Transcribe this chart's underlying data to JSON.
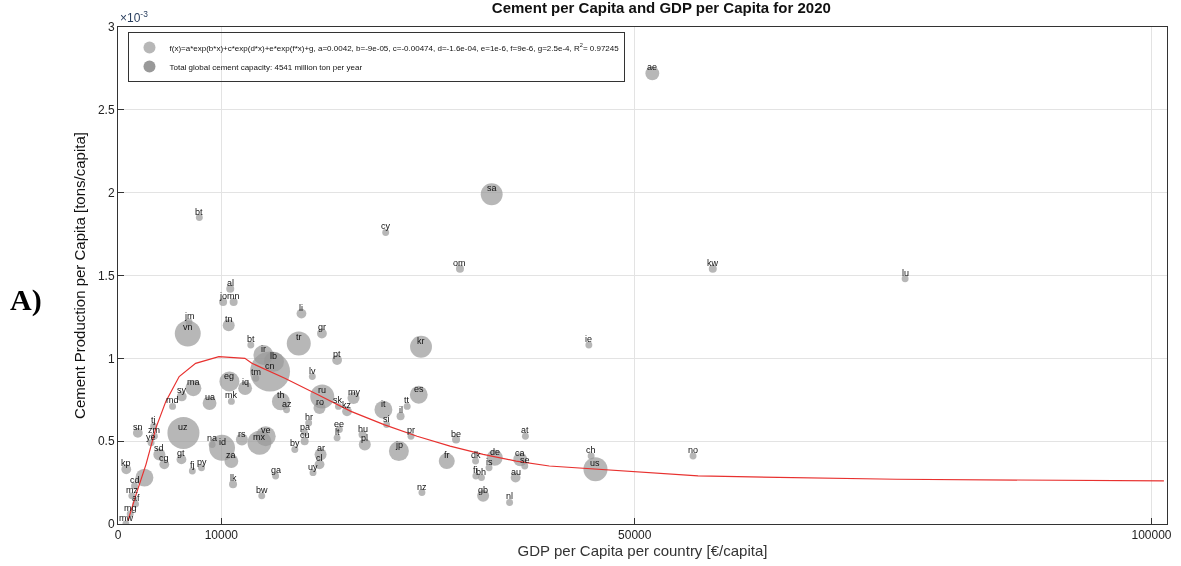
{
  "chart_data": {
    "type": "bubble",
    "title": "Cement per Capita and GDP per Capita for 2020",
    "xlabel": "GDP per Capita per country [€/capita]",
    "ylabel": "Cement Production per Capita [tons/capita]",
    "xlim": [
      0,
      101500
    ],
    "xticks": [
      0,
      10000,
      50000,
      100000
    ],
    "ylim": [
      0,
      3
    ],
    "yticks": [
      0,
      0.5,
      1,
      1.5,
      2,
      2.5,
      3
    ],
    "grid": true,
    "legend": "top left",
    "marker": "circle",
    "series": [
      {
        "name": "f(x)=a*exp(b*x)+c*exp(d*x)+e*exp(f*x)+g, a=0.0042, b=-9e-05, c=-0.00474, d=-1.6e-04, e=1e-6, f=9e-6, g=2.5e-4, R$^{2}$= 0.97245",
        "color": "#999999",
        "x": [
          51700,
          36160,
          25900,
          7870,
          33090,
          57550,
          76160,
          10860,
          10170,
          11190,
          17750,
          19730,
          10710,
          6870,
          6750,
          17490,
          12850,
          14070,
          21200,
          15090,
          29320,
          45560,
          14710,
          13330,
          18800,
          10780,
          12300,
          7290,
          6170,
          5280,
          8860,
          10970,
          22790,
          19760,
          15760,
          16310,
          19500,
          21330,
          22160,
          25680,
          29100,
          27980,
          27340,
          25990,
          18450,
          21420,
          21200,
          18060,
          18060,
          17110,
          23660,
          23880,
          27180,
          28350,
          32710,
          39420,
          31810,
          34600,
          35900,
          34630,
          35170,
          36450,
          38920,
          39360,
          38470,
          35330,
          29410,
          37890,
          45780,
          46200,
          55640,
          19600,
          19500,
          18870,
          15250,
          13910,
          11130,
          14290,
          13690,
          11990,
          9110,
          10070,
          10970,
          6330,
          3520,
          1920,
          3450,
          3200,
          4000,
          6140,
          4480,
          7190,
          8080,
          800,
          2560,
          1600,
          1340,
          1700,
          1180,
          770
        ],
        "values": [
          2.72,
          1.99,
          1.76,
          1.85,
          1.54,
          1.54,
          1.48,
          1.42,
          1.34,
          1.34,
          1.27,
          1.15,
          1.2,
          1.22,
          1.15,
          1.09,
          1.08,
          1.02,
          0.99,
          0.98,
          1.07,
          1.08,
          0.92,
          0.88,
          0.89,
          0.86,
          0.82,
          0.82,
          0.77,
          0.71,
          0.73,
          0.74,
          0.76,
          0.77,
          0.74,
          0.69,
          0.7,
          0.71,
          0.68,
          0.69,
          0.78,
          0.71,
          0.65,
          0.6,
          0.61,
          0.57,
          0.52,
          0.55,
          0.5,
          0.45,
          0.54,
          0.48,
          0.44,
          0.53,
          0.51,
          0.53,
          0.38,
          0.38,
          0.34,
          0.29,
          0.28,
          0.4,
          0.39,
          0.35,
          0.28,
          0.17,
          0.19,
          0.13,
          0.41,
          0.33,
          0.41,
          0.42,
          0.36,
          0.31,
          0.29,
          0.17,
          0.24,
          0.53,
          0.49,
          0.51,
          0.48,
          0.46,
          0.38,
          0.55,
          0.53,
          0.55,
          0.59,
          0.49,
          0.42,
          0.39,
          0.36,
          0.32,
          0.34,
          0.33,
          0.28,
          0.23,
          0.17,
          0.12,
          0.06,
          0.0
        ],
        "sizes": [
          0.12,
          0.3,
          0.03,
          0.03,
          0.04,
          0.04,
          0.03,
          0.04,
          0.04,
          0.04,
          0.06,
          0.06,
          0.09,
          0.03,
          0.42,
          0.36,
          0.03,
          0.25,
          0.06,
          0.25,
          0.3,
          0.03,
          1,
          0.03,
          0.03,
          0.25,
          0.12,
          0.16,
          0.06,
          0.03,
          0.12,
          0.03,
          0.09,
          0.36,
          0.2,
          0.03,
          0.09,
          0.03,
          0.06,
          0.2,
          0.2,
          0.03,
          0.04,
          0.03,
          0.03,
          0.03,
          0.03,
          0.03,
          0.04,
          0.03,
          0.04,
          0.09,
          0.25,
          0.03,
          0.04,
          0.03,
          0.16,
          0.03,
          0.03,
          0.03,
          0.03,
          0.16,
          0.12,
          0.03,
          0.06,
          0.09,
          0.03,
          0.03,
          0.03,
          0.36,
          0.03,
          0.09,
          0.06,
          0.03,
          0.03,
          0.03,
          0.04,
          0.25,
          0.36,
          0.09,
          0.03,
          0.42,
          0.12,
          0.64,
          0.03,
          0.06,
          0.03,
          0.03,
          0.09,
          0.06,
          0.06,
          0.03,
          0.03,
          0.06,
          0.2,
          0.03,
          0.03,
          0.03,
          0.03,
          0.03
        ]
      },
      {
        "name": "Total global cement capacity: 4541 million ton per year",
        "color": "#999999",
        "type": "scatter"
      },
      {
        "type": "line",
        "color": "#e8312f",
        "line_style": "solid",
        "marker": "none",
        "x": [
          960,
          1760,
          2710,
          3670,
          4630,
          5920,
          7510,
          9760,
          12280,
          12950,
          16140,
          19350,
          22540,
          25740,
          28940,
          32130,
          35330,
          38530,
          41730,
          56120,
          75300,
          101200
        ],
        "values": [
          0.02,
          0.18,
          0.36,
          0.58,
          0.74,
          0.89,
          0.97,
          1.01,
          1.0,
          0.97,
          0.88,
          0.78,
          0.68,
          0.6,
          0.53,
          0.47,
          0.42,
          0.38,
          0.35,
          0.29,
          0.27,
          0.26
        ]
      }
    ],
    "annotations": [
      "×10$^{-3}$",
      "A)",
      {
        "text": "ae",
        "x": 51700,
        "y": 2.72
      },
      {
        "text": "sa",
        "x": 36160,
        "y": 1.99
      },
      {
        "text": "cy",
        "x": 25900,
        "y": 1.76
      },
      {
        "text": "bt",
        "x": 7870,
        "y": 1.85
      },
      {
        "text": "om",
        "x": 33090,
        "y": 1.54
      },
      {
        "text": "kw",
        "x": 57550,
        "y": 1.54
      },
      {
        "text": "lu",
        "x": 76160,
        "y": 1.48
      },
      {
        "text": "al",
        "x": 10860,
        "y": 1.42
      },
      {
        "text": "jo",
        "x": 10170,
        "y": 1.34
      },
      {
        "text": "mn",
        "x": 11190,
        "y": 1.34
      },
      {
        "text": "li",
        "x": 17750,
        "y": 1.27
      },
      {
        "text": "gr",
        "x": 19730,
        "y": 1.15
      },
      {
        "text": "tn",
        "x": 10710,
        "y": 1.2
      },
      {
        "text": "jm",
        "x": 6870,
        "y": 1.22
      },
      {
        "text": "vn",
        "x": 6750,
        "y": 1.15
      },
      {
        "text": "tr",
        "x": 17490,
        "y": 1.09
      },
      {
        "text": "bt",
        "x": 12850,
        "y": 1.08
      },
      {
        "text": "ir",
        "x": 14070,
        "y": 1.02
      },
      {
        "text": "pt",
        "x": 21200,
        "y": 0.99
      },
      {
        "text": "lb",
        "x": 15090,
        "y": 0.98
      },
      {
        "text": "kr",
        "x": 29320,
        "y": 1.07
      },
      {
        "text": "ie",
        "x": 45560,
        "y": 1.08
      },
      {
        "text": "cn",
        "x": 14710,
        "y": 0.92
      },
      {
        "text": "tm",
        "x": 13330,
        "y": 0.88
      },
      {
        "text": "lv",
        "x": 18800,
        "y": 0.89
      },
      {
        "text": "eg",
        "x": 10780,
        "y": 0.86
      },
      {
        "text": "iq",
        "x": 12300,
        "y": 0.82
      },
      {
        "text": "ma",
        "x": 7290,
        "y": 0.82
      },
      {
        "text": "sy",
        "x": 6170,
        "y": 0.77
      },
      {
        "text": "md",
        "x": 5280,
        "y": 0.71
      },
      {
        "text": "ua",
        "x": 8860,
        "y": 0.73
      },
      {
        "text": "mk",
        "x": 10970,
        "y": 0.74
      },
      {
        "text": "my",
        "x": 22790,
        "y": 0.76
      },
      {
        "text": "ru",
        "x": 19760,
        "y": 0.77
      },
      {
        "text": "th",
        "x": 15760,
        "y": 0.74
      },
      {
        "text": "az",
        "x": 16310,
        "y": 0.69
      },
      {
        "text": "ro",
        "x": 19500,
        "y": 0.7
      },
      {
        "text": "sk",
        "x": 21330,
        "y": 0.71
      },
      {
        "text": "kz",
        "x": 22160,
        "y": 0.68
      },
      {
        "text": "it",
        "x": 25680,
        "y": 0.69
      },
      {
        "text": "es",
        "x": 29100,
        "y": 0.78
      },
      {
        "text": "tt",
        "x": 27980,
        "y": 0.71
      },
      {
        "text": "il",
        "x": 27340,
        "y": 0.65
      },
      {
        "text": "si",
        "x": 25990,
        "y": 0.6
      },
      {
        "text": "hr",
        "x": 18450,
        "y": 0.61
      },
      {
        "text": "ee",
        "x": 21420,
        "y": 0.57
      },
      {
        "text": "lt",
        "x": 21200,
        "y": 0.52
      },
      {
        "text": "pa",
        "x": 18060,
        "y": 0.55
      },
      {
        "text": "cu",
        "x": 18060,
        "y": 0.5
      },
      {
        "text": "by",
        "x": 17110,
        "y": 0.45
      },
      {
        "text": "hu",
        "x": 23660,
        "y": 0.54
      },
      {
        "text": "pl",
        "x": 23880,
        "y": 0.48
      },
      {
        "text": "jp",
        "x": 27180,
        "y": 0.44
      },
      {
        "text": "pr",
        "x": 28350,
        "y": 0.53
      },
      {
        "text": "be",
        "x": 32710,
        "y": 0.51
      },
      {
        "text": "at",
        "x": 39420,
        "y": 0.53
      },
      {
        "text": "fr",
        "x": 31810,
        "y": 0.38
      },
      {
        "text": "dk",
        "x": 34600,
        "y": 0.38
      },
      {
        "text": "is",
        "x": 35900,
        "y": 0.34
      },
      {
        "text": "fi",
        "x": 34630,
        "y": 0.29
      },
      {
        "text": "bh",
        "x": 35170,
        "y": 0.28
      },
      {
        "text": "de",
        "x": 36450,
        "y": 0.4
      },
      {
        "text": "ca",
        "x": 38920,
        "y": 0.39
      },
      {
        "text": "se",
        "x": 39360,
        "y": 0.35
      },
      {
        "text": "au",
        "x": 38470,
        "y": 0.28
      },
      {
        "text": "gb",
        "x": 35330,
        "y": 0.17
      },
      {
        "text": "nz",
        "x": 29410,
        "y": 0.19
      },
      {
        "text": "nl",
        "x": 37890,
        "y": 0.13
      },
      {
        "text": "ch",
        "x": 45780,
        "y": 0.41
      },
      {
        "text": "us",
        "x": 46200,
        "y": 0.33
      },
      {
        "text": "no",
        "x": 55640,
        "y": 0.41
      },
      {
        "text": "ar",
        "x": 19600,
        "y": 0.42
      },
      {
        "text": "cl",
        "x": 19500,
        "y": 0.36
      },
      {
        "text": "uy",
        "x": 18870,
        "y": 0.31
      },
      {
        "text": "ga",
        "x": 15250,
        "y": 0.29
      },
      {
        "text": "bw",
        "x": 13910,
        "y": 0.17
      },
      {
        "text": "lk",
        "x": 11130,
        "y": 0.24
      },
      {
        "text": "ve",
        "x": 14290,
        "y": 0.53
      },
      {
        "text": "mx",
        "x": 13690,
        "y": 0.49
      },
      {
        "text": "rs",
        "x": 11990,
        "y": 0.51
      },
      {
        "text": "na",
        "x": 9110,
        "y": 0.48
      },
      {
        "text": "id",
        "x": 10070,
        "y": 0.46
      },
      {
        "text": "za",
        "x": 10970,
        "y": 0.38
      },
      {
        "text": "uz",
        "x": 6330,
        "y": 0.55
      },
      {
        "text": "zm",
        "x": 3520,
        "y": 0.53
      },
      {
        "text": "sn",
        "x": 1920,
        "y": 0.55
      },
      {
        "text": "tj",
        "x": 3450,
        "y": 0.59
      },
      {
        "text": "ye",
        "x": 3200,
        "y": 0.49
      },
      {
        "text": "sd",
        "x": 4000,
        "y": 0.42
      },
      {
        "text": "gt",
        "x": 6140,
        "y": 0.39
      },
      {
        "text": "cg",
        "x": 4480,
        "y": 0.36
      },
      {
        "text": "fj",
        "x": 7190,
        "y": 0.32
      },
      {
        "text": "py",
        "x": 8080,
        "y": 0.34
      },
      {
        "text": "kp",
        "x": 800,
        "y": 0.33
      },
      {
        "text": "cd",
        "x": 1600,
        "y": 0.23
      },
      {
        "text": "mz",
        "x": 1340,
        "y": 0.17
      },
      {
        "text": "af",
        "x": 1700,
        "y": 0.12
      },
      {
        "text": "mg",
        "x": 1180,
        "y": 0.06
      },
      {
        "text": "mw",
        "x": 770,
        "y": 0.0
      }
    ]
  }
}
